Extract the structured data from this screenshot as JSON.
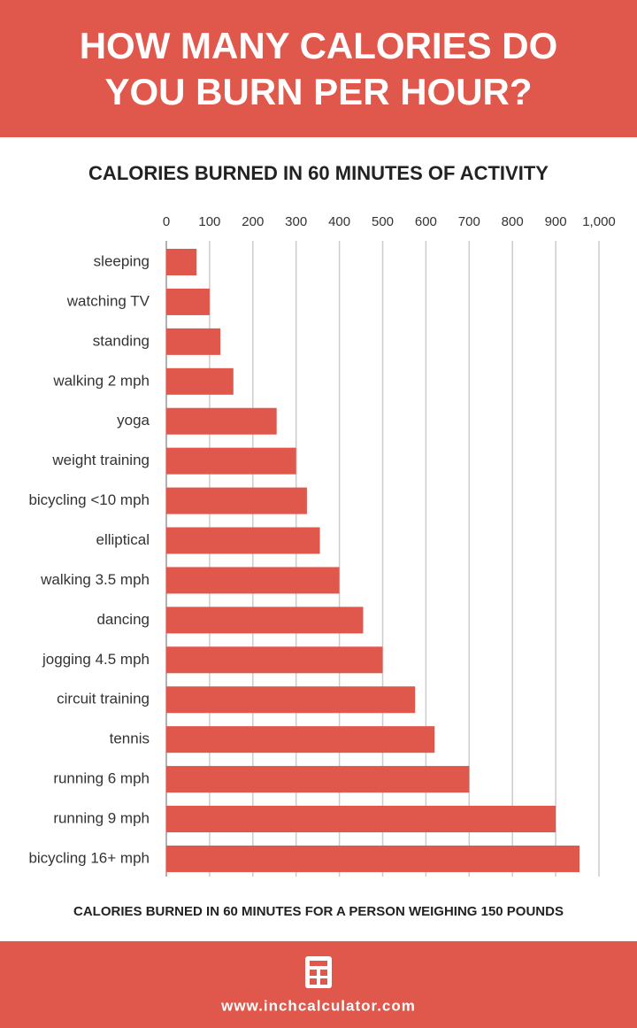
{
  "header": {
    "title": "HOW MANY CALORIES DO YOU BURN PER HOUR?"
  },
  "chart_data": {
    "type": "barh",
    "title": "CALORIES BURNED IN 60 MINUTES OF ACTIVITY",
    "x_label": "CALORIES BURNED IN 60 MINUTES FOR A PERSON WEIGHING 150 POUNDS",
    "categories": [
      "sleeping",
      "watching TV",
      "standing",
      "walking 2 mph",
      "yoga",
      "weight training",
      "bicycling <10 mph",
      "elliptical",
      "walking 3.5 mph",
      "dancing",
      "jogging 4.5 mph",
      "circuit training",
      "tennis",
      "running 6 mph",
      "running 9 mph",
      "bicycling 16+ mph"
    ],
    "values": [
      70,
      100,
      125,
      155,
      255,
      300,
      325,
      355,
      400,
      455,
      500,
      575,
      620,
      700,
      900,
      955
    ],
    "color": "#e0574b",
    "xlim": [
      0,
      1000
    ],
    "xticks": [
      0,
      100,
      200,
      300,
      400,
      500,
      600,
      700,
      800,
      900,
      {
        "value": 1000,
        "label": "1,000"
      }
    ],
    "grid": true
  },
  "footer": {
    "url": "www.inchcalculator.com"
  }
}
